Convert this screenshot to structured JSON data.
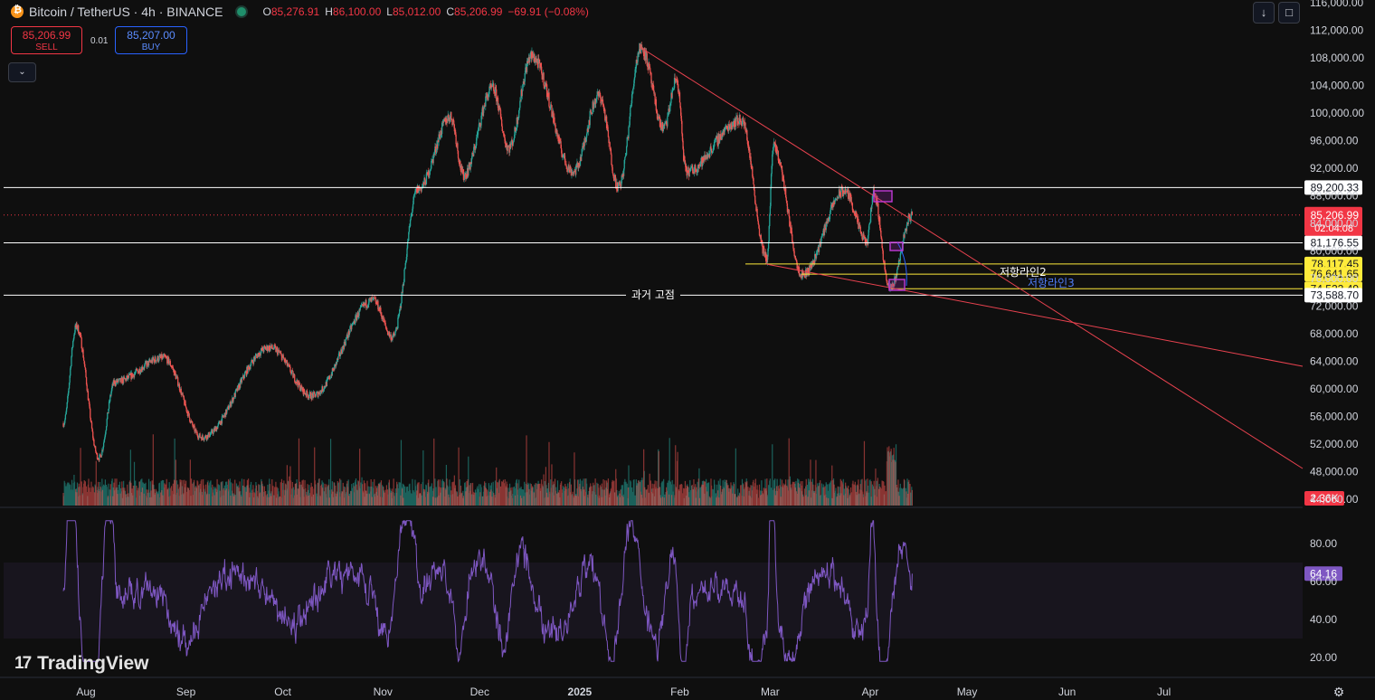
{
  "header": {
    "title": "Bitcoin / TetherUS · 4h · BINANCE",
    "ohlc": [
      {
        "k": "O",
        "v": "85,276.91"
      },
      {
        "k": "H",
        "v": "86,100.00"
      },
      {
        "k": "L",
        "v": "85,012.00"
      },
      {
        "k": "C",
        "v": "85,206.99"
      }
    ],
    "change": "−69.91 (−0.08%)"
  },
  "trade": {
    "sell_price": "85,206.99",
    "sell_label": "SELL",
    "spread": "0.01",
    "buy_price": "85,207.00",
    "buy_label": "BUY"
  },
  "logo": "TradingView",
  "colors": {
    "up": "#26a69a",
    "down": "#ef5350",
    "trendline": "#e8424f",
    "rsi": "#7e57c2",
    "yellow": "#ffeb3b"
  },
  "chart_data": {
    "type": "candlestick",
    "title": "Bitcoin / TetherUS · 4h · BINANCE",
    "x_ticks": [
      "Aug",
      "Sep",
      "Oct",
      "Nov",
      "Dec",
      "2025",
      "Feb",
      "Mar",
      "Apr",
      "May",
      "Jun",
      "Jul"
    ],
    "y_ticks": [
      "116,000.00",
      "112,000.00",
      "108,000.00",
      "104,000.00",
      "100,000.00",
      "96,000.00",
      "92,000.00",
      "88,000.00",
      "84,000.00",
      "80,000.00",
      "76,000.00",
      "72,000.00",
      "68,000.00",
      "64,000.00",
      "60,000.00",
      "56,000.00",
      "52,000.00",
      "48,000.00",
      "44,000.00"
    ],
    "ylim": [
      43000,
      117000
    ],
    "price_series": [
      [
        "2024-07-25",
        55000
      ],
      [
        "2024-07-29",
        69000
      ],
      [
        "2024-08-05",
        50000
      ],
      [
        "2024-08-10",
        61000
      ],
      [
        "2024-08-25",
        64500
      ],
      [
        "2024-09-06",
        53000
      ],
      [
        "2024-09-27",
        66000
      ],
      [
        "2024-10-10",
        59000
      ],
      [
        "2024-10-29",
        72800
      ],
      [
        "2024-11-04",
        67500
      ],
      [
        "2024-11-12",
        89000
      ],
      [
        "2024-11-22",
        99500
      ],
      [
        "2024-11-26",
        91000
      ],
      [
        "2024-12-05",
        103500
      ],
      [
        "2024-12-10",
        95000
      ],
      [
        "2024-12-17",
        108200
      ],
      [
        "2024-12-30",
        91500
      ],
      [
        "2025-01-07",
        102500
      ],
      [
        "2025-01-13",
        89300
      ],
      [
        "2025-01-20",
        109500
      ],
      [
        "2025-01-27",
        97800
      ],
      [
        "2025-01-31",
        104800
      ],
      [
        "2025-02-03",
        91500
      ],
      [
        "2025-02-20",
        99000
      ],
      [
        "2025-02-28",
        79000
      ],
      [
        "2025-03-02",
        95000
      ],
      [
        "2025-03-11",
        76600
      ],
      [
        "2025-03-24",
        88700
      ],
      [
        "2025-03-31",
        81300
      ],
      [
        "2025-04-02",
        88500
      ],
      [
        "2025-04-07",
        74500
      ],
      [
        "2025-04-14",
        85206.99
      ]
    ],
    "horizontal_levels": [
      {
        "price": 89200.33,
        "label": "89,200.33"
      },
      {
        "price": 81176.55,
        "label": "81,176.55"
      },
      {
        "price": 78117.45,
        "label": "78,117.45"
      },
      {
        "price": 76641.65,
        "label": "76,641.65"
      },
      {
        "price": 74522.49,
        "label": "74,522.49"
      },
      {
        "price": 73588.7,
        "label": "73,588.70"
      }
    ],
    "annotations": [
      {
        "text": "과거 고점"
      },
      {
        "text": "저항라인2"
      },
      {
        "text": "저항라인3"
      }
    ],
    "last_price": {
      "label": "85,206.99",
      "countdown": "02:04:08"
    },
    "volume": {
      "last_label": "2.36K"
    },
    "rsi": {
      "y_ticks": [
        "80.00",
        "60.00",
        "40.00",
        "20.00"
      ],
      "ylim": [
        15,
        95
      ],
      "band": [
        30,
        70
      ],
      "last_label": "64.16"
    }
  }
}
